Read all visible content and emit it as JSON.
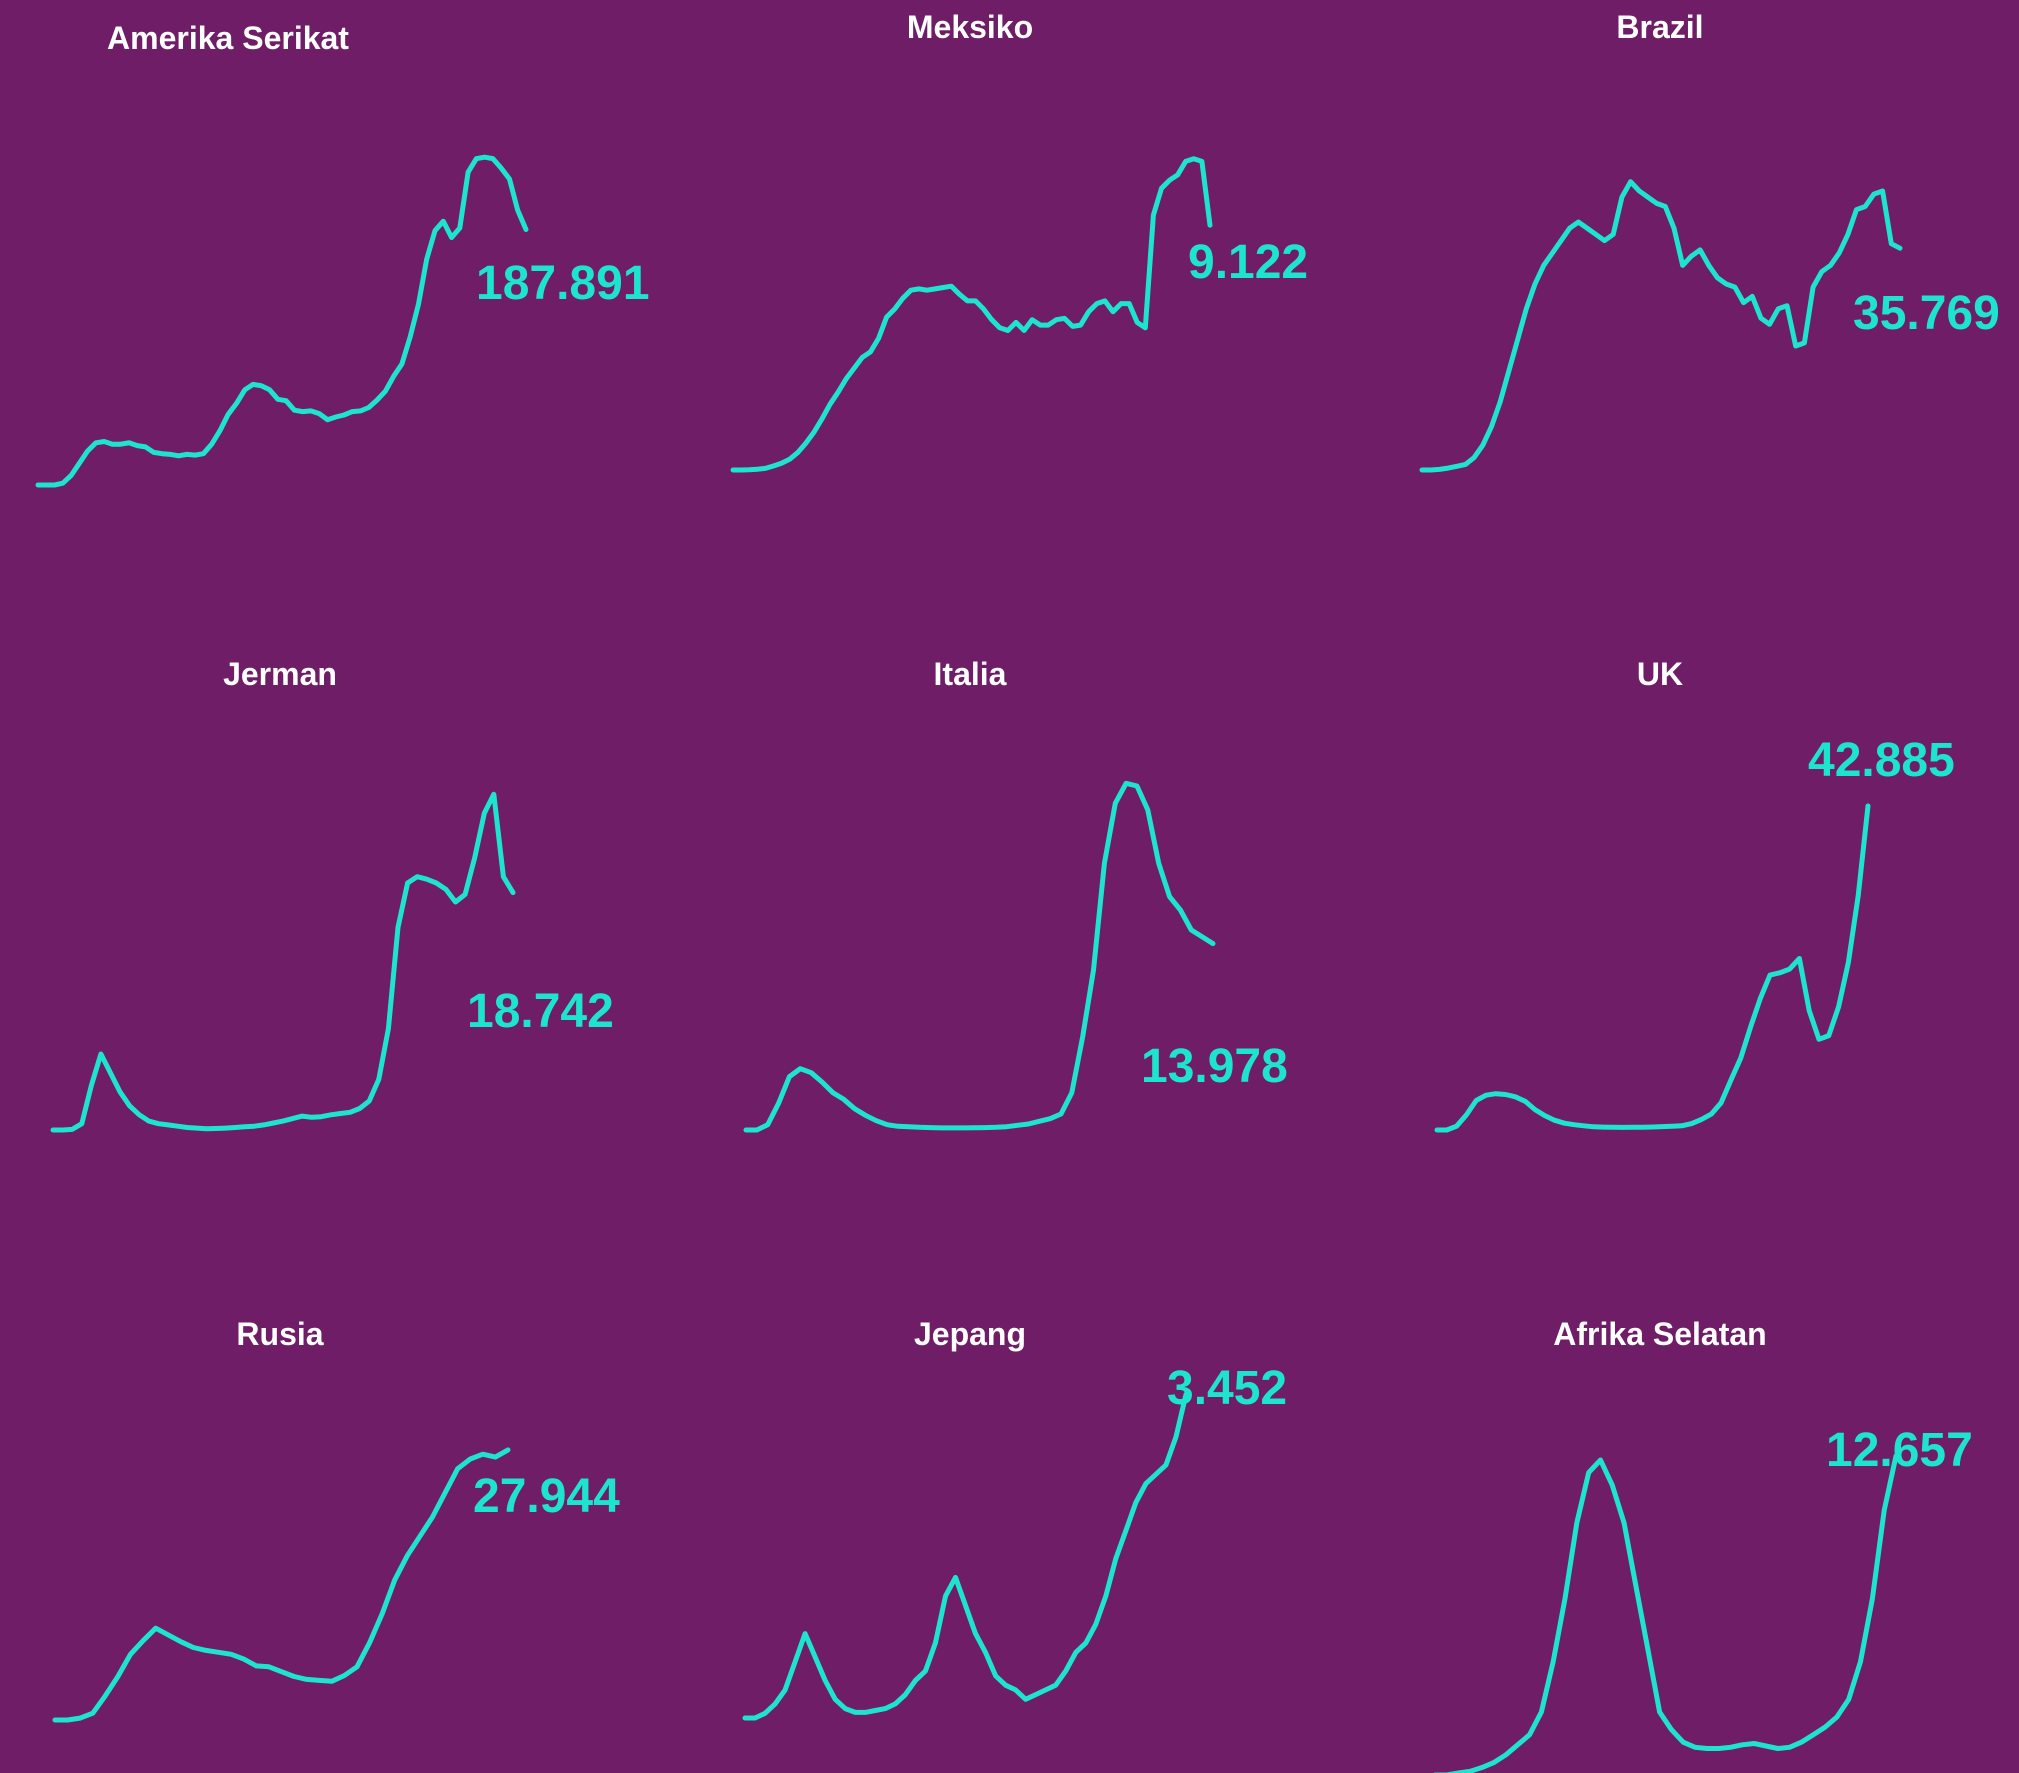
{
  "colors": {
    "background": "#6f1d66",
    "line": "#1de5cd",
    "title": "#ffffff"
  },
  "chart_data": [
    {
      "type": "line",
      "title": "Amerika Serikat",
      "value_label": "187.891",
      "latest_value": 187891,
      "ylim": [
        0,
        250000
      ],
      "values": [
        0,
        0,
        0,
        1300,
        7000,
        16000,
        25000,
        31000,
        32000,
        30000,
        30000,
        31000,
        29000,
        28000,
        24000,
        23000,
        22500,
        21500,
        22500,
        22000,
        23000,
        30000,
        40000,
        52000,
        60000,
        70000,
        74000,
        73000,
        70000,
        63000,
        62000,
        55000,
        54000,
        54500,
        52500,
        48000,
        50000,
        51500,
        54000,
        54500,
        57000,
        62500,
        69000,
        80000,
        89000,
        109000,
        133000,
        166000,
        187000,
        194000,
        182000,
        189000,
        230000,
        240000,
        241000,
        240000,
        233000,
        225000,
        202000,
        187891
      ]
    },
    {
      "type": "line",
      "title": "Meksiko",
      "value_label": "9.122",
      "latest_value": 9122,
      "ylim": [
        0,
        12000
      ],
      "values": [
        0,
        0,
        10,
        30,
        60,
        150,
        250,
        400,
        650,
        1000,
        1400,
        1900,
        2450,
        2900,
        3400,
        3800,
        4200,
        4400,
        4900,
        5700,
        6000,
        6400,
        6700,
        6750,
        6700,
        6750,
        6800,
        6850,
        6550,
        6300,
        6300,
        6000,
        5600,
        5300,
        5200,
        5500,
        5200,
        5600,
        5400,
        5400,
        5600,
        5650,
        5350,
        5400,
        5900,
        6200,
        6300,
        5900,
        6200,
        6200,
        5500,
        5300,
        9500,
        10500,
        10800,
        11000,
        11500,
        11600,
        11500,
        9122
      ]
    },
    {
      "type": "line",
      "title": "Brazil",
      "value_label": "35.769",
      "latest_value": 35769,
      "ylim": [
        0,
        50000
      ],
      "values": [
        0,
        0,
        100,
        300,
        600,
        900,
        2000,
        4000,
        7000,
        11000,
        16000,
        21000,
        26000,
        30000,
        33000,
        35000,
        37000,
        39000,
        40000,
        39000,
        38000,
        37000,
        38000,
        44000,
        46500,
        45000,
        44000,
        43000,
        42500,
        39000,
        33000,
        34500,
        35500,
        33000,
        31000,
        30000,
        29500,
        27000,
        28000,
        24500,
        23500,
        26000,
        26500,
        20000,
        20500,
        29500,
        32000,
        33000,
        35000,
        38000,
        42000,
        42500,
        44500,
        45000,
        36500,
        35769
      ]
    },
    {
      "type": "line",
      "title": "Jerman",
      "value_label": "18.742",
      "latest_value": 18742,
      "ylim": [
        0,
        30000
      ],
      "values": [
        0,
        0,
        50,
        500,
        3500,
        6000,
        4500,
        3000,
        1900,
        1200,
        700,
        500,
        400,
        300,
        200,
        150,
        100,
        120,
        150,
        200,
        250,
        300,
        400,
        550,
        700,
        900,
        1100,
        1000,
        1050,
        1200,
        1300,
        1400,
        1700,
        2300,
        4000,
        8000,
        16000,
        19500,
        20000,
        19800,
        19500,
        19000,
        18000,
        18600,
        21500,
        25000,
        26500,
        20000,
        18742
      ]
    },
    {
      "type": "line",
      "title": "Italia",
      "value_label": "13.978",
      "latest_value": 13978,
      "ylim": [
        0,
        30000
      ],
      "values": [
        0,
        0,
        400,
        2000,
        4000,
        4600,
        4300,
        3600,
        2800,
        2300,
        1600,
        1100,
        700,
        400,
        280,
        250,
        200,
        180,
        160,
        160,
        160,
        170,
        180,
        200,
        250,
        350,
        450,
        650,
        850,
        1200,
        2800,
        7000,
        12000,
        20000,
        24500,
        26000,
        25800,
        24000,
        20000,
        17500,
        16500,
        15000,
        14500,
        13978
      ]
    },
    {
      "type": "line",
      "title": "UK",
      "value_label": "42.885",
      "latest_value": 42885,
      "ylim": [
        0,
        45000
      ],
      "values": [
        0,
        0,
        500,
        2000,
        3900,
        4600,
        4800,
        4700,
        4400,
        3800,
        2700,
        1900,
        1300,
        900,
        700,
        550,
        420,
        380,
        360,
        350,
        360,
        370,
        400,
        450,
        500,
        560,
        850,
        1400,
        2100,
        3600,
        6600,
        9500,
        13600,
        17400,
        20500,
        20800,
        21300,
        22700,
        15800,
        12000,
        12500,
        16300,
        22200,
        31000,
        42885
      ]
    },
    {
      "type": "line",
      "title": "Rusia",
      "value_label": "27.944",
      "latest_value": 27944,
      "ylim": [
        0,
        30000
      ],
      "values": [
        0,
        0,
        200,
        700,
        2500,
        4500,
        6800,
        8200,
        9500,
        8800,
        8100,
        7500,
        7200,
        7000,
        6800,
        6300,
        5600,
        5500,
        5000,
        4500,
        4200,
        4100,
        4000,
        4600,
        5500,
        8000,
        11000,
        14500,
        17000,
        19000,
        21000,
        23500,
        26000,
        27000,
        27500,
        27200,
        27944
      ]
    },
    {
      "type": "line",
      "title": "Jepang",
      "value_label": "3.452",
      "latest_value": 3452,
      "ylim": [
        0,
        4000
      ],
      "values": [
        0,
        0,
        50,
        150,
        300,
        600,
        900,
        650,
        400,
        200,
        100,
        60,
        60,
        80,
        100,
        150,
        250,
        400,
        500,
        800,
        1300,
        1500,
        1200,
        900,
        700,
        450,
        350,
        300,
        200,
        250,
        300,
        350,
        500,
        700,
        800,
        1000,
        1300,
        1700,
        2000,
        2300,
        2500,
        2600,
        2700,
        3000,
        3452
      ]
    },
    {
      "type": "line",
      "title": "Afrika Selatan",
      "value_label": "12.657",
      "latest_value": 12657,
      "ylim": [
        0,
        15000
      ],
      "values": [
        0,
        0,
        80,
        150,
        300,
        500,
        800,
        1200,
        1600,
        2500,
        4500,
        7000,
        10000,
        12000,
        12500,
        11500,
        10000,
        7500,
        5000,
        2500,
        1800,
        1300,
        1100,
        1050,
        1050,
        1100,
        1200,
        1250,
        1150,
        1050,
        1100,
        1300,
        1600,
        1900,
        2300,
        3000,
        4500,
        7000,
        10500,
        12657
      ]
    }
  ]
}
